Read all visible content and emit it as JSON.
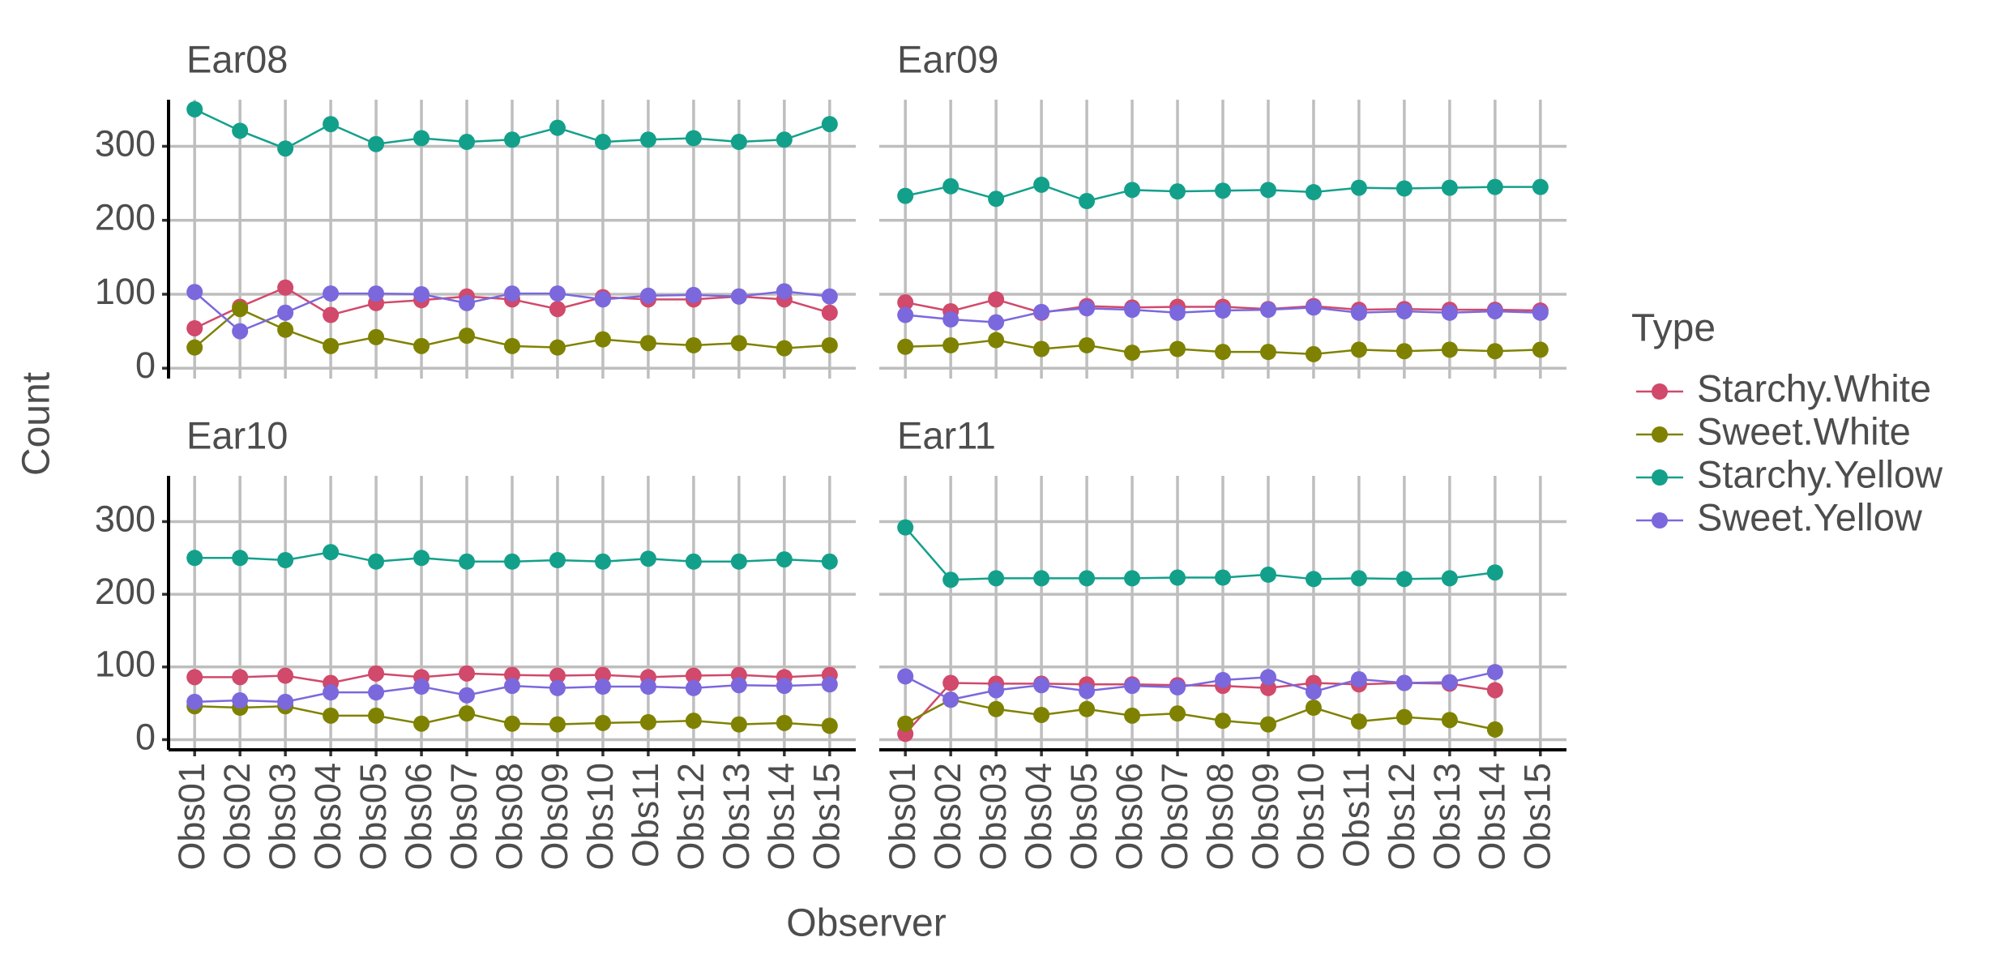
{
  "chart_data": {
    "type": "line",
    "x_label": "Observer",
    "y_label": "Count",
    "legend_title": "Type",
    "legend": "right",
    "grid": true,
    "categories": [
      "Obs01",
      "Obs02",
      "Obs03",
      "Obs04",
      "Obs05",
      "Obs06",
      "Obs07",
      "Obs08",
      "Obs09",
      "Obs10",
      "Obs11",
      "Obs12",
      "Obs13",
      "Obs14",
      "Obs15"
    ],
    "ylim": [
      -14,
      363
    ],
    "yticks": [
      0,
      100,
      200,
      300
    ],
    "facets": [
      {
        "title": "Ear08",
        "series": [
          {
            "name": "Starchy.White",
            "color": "#d1496b",
            "values": [
              54,
              83,
              109,
              72,
              88,
              92,
              97,
              93,
              80,
              96,
              93,
              93,
              97,
              93,
              75
            ]
          },
          {
            "name": "Sweet.White",
            "color": "#7f8200",
            "values": [
              28,
              80,
              52,
              30,
              42,
              30,
              44,
              30,
              28,
              39,
              34,
              31,
              34,
              27,
              31
            ]
          },
          {
            "name": "Starchy.Yellow",
            "color": "#13a08b",
            "values": [
              350,
              321,
              297,
              330,
              303,
              311,
              306,
              309,
              325,
              306,
              309,
              311,
              306,
              309,
              330
            ]
          },
          {
            "name": "Sweet.Yellow",
            "color": "#7b68dd",
            "values": [
              103,
              50,
              75,
              101,
              101,
              100,
              88,
              101,
              101,
              93,
              98,
              99,
              97,
              104,
              97
            ]
          }
        ]
      },
      {
        "title": "Ear09",
        "series": [
          {
            "name": "Starchy.White",
            "color": "#d1496b",
            "values": [
              89,
              77,
              93,
              75,
              84,
              82,
              83,
              83,
              80,
              84,
              79,
              80,
              79,
              79,
              78
            ]
          },
          {
            "name": "Sweet.White",
            "color": "#7f8200",
            "values": [
              29,
              31,
              38,
              26,
              31,
              21,
              26,
              22,
              22,
              19,
              25,
              23,
              25,
              23,
              25
            ]
          },
          {
            "name": "Starchy.Yellow",
            "color": "#13a08b",
            "values": [
              233,
              246,
              229,
              248,
              226,
              241,
              239,
              240,
              241,
              238,
              244,
              243,
              244,
              245,
              245
            ]
          },
          {
            "name": "Sweet.Yellow",
            "color": "#7b68dd",
            "values": [
              72,
              66,
              62,
              76,
              81,
              79,
              75,
              78,
              79,
              82,
              75,
              77,
              75,
              77,
              75
            ]
          }
        ]
      },
      {
        "title": "Ear10",
        "series": [
          {
            "name": "Starchy.White",
            "color": "#d1496b",
            "values": [
              86,
              86,
              88,
              78,
              91,
              86,
              91,
              89,
              88,
              89,
              86,
              88,
              89,
              86,
              89
            ]
          },
          {
            "name": "Sweet.White",
            "color": "#7f8200",
            "values": [
              46,
              44,
              46,
              33,
              33,
              22,
              36,
              22,
              21,
              23,
              24,
              26,
              21,
              23,
              19
            ]
          },
          {
            "name": "Starchy.Yellow",
            "color": "#13a08b",
            "values": [
              250,
              250,
              247,
              258,
              245,
              250,
              245,
              245,
              247,
              245,
              249,
              245,
              245,
              248,
              245
            ]
          },
          {
            "name": "Sweet.Yellow",
            "color": "#7b68dd",
            "values": [
              52,
              54,
              52,
              65,
              65,
              73,
              61,
              74,
              71,
              73,
              73,
              71,
              75,
              74,
              76
            ]
          }
        ]
      },
      {
        "title": "Ear11",
        "series": [
          {
            "name": "Starchy.White",
            "color": "#d1496b",
            "values": [
              8,
              78,
              77,
              77,
              76,
              76,
              75,
              74,
              71,
              78,
              76,
              78,
              77,
              68,
              null
            ]
          },
          {
            "name": "Sweet.White",
            "color": "#7f8200",
            "values": [
              22,
              55,
              42,
              34,
              42,
              33,
              36,
              26,
              21,
              44,
              25,
              31,
              27,
              14,
              null
            ]
          },
          {
            "name": "Starchy.Yellow",
            "color": "#13a08b",
            "values": [
              292,
              220,
              222,
              222,
              222,
              222,
              223,
              223,
              227,
              221,
              222,
              221,
              222,
              230,
              null
            ]
          },
          {
            "name": "Sweet.Yellow",
            "color": "#7b68dd",
            "values": [
              87,
              55,
              68,
              75,
              67,
              74,
              72,
              82,
              86,
              66,
              83,
              78,
              79,
              93,
              null
            ]
          }
        ]
      }
    ]
  }
}
